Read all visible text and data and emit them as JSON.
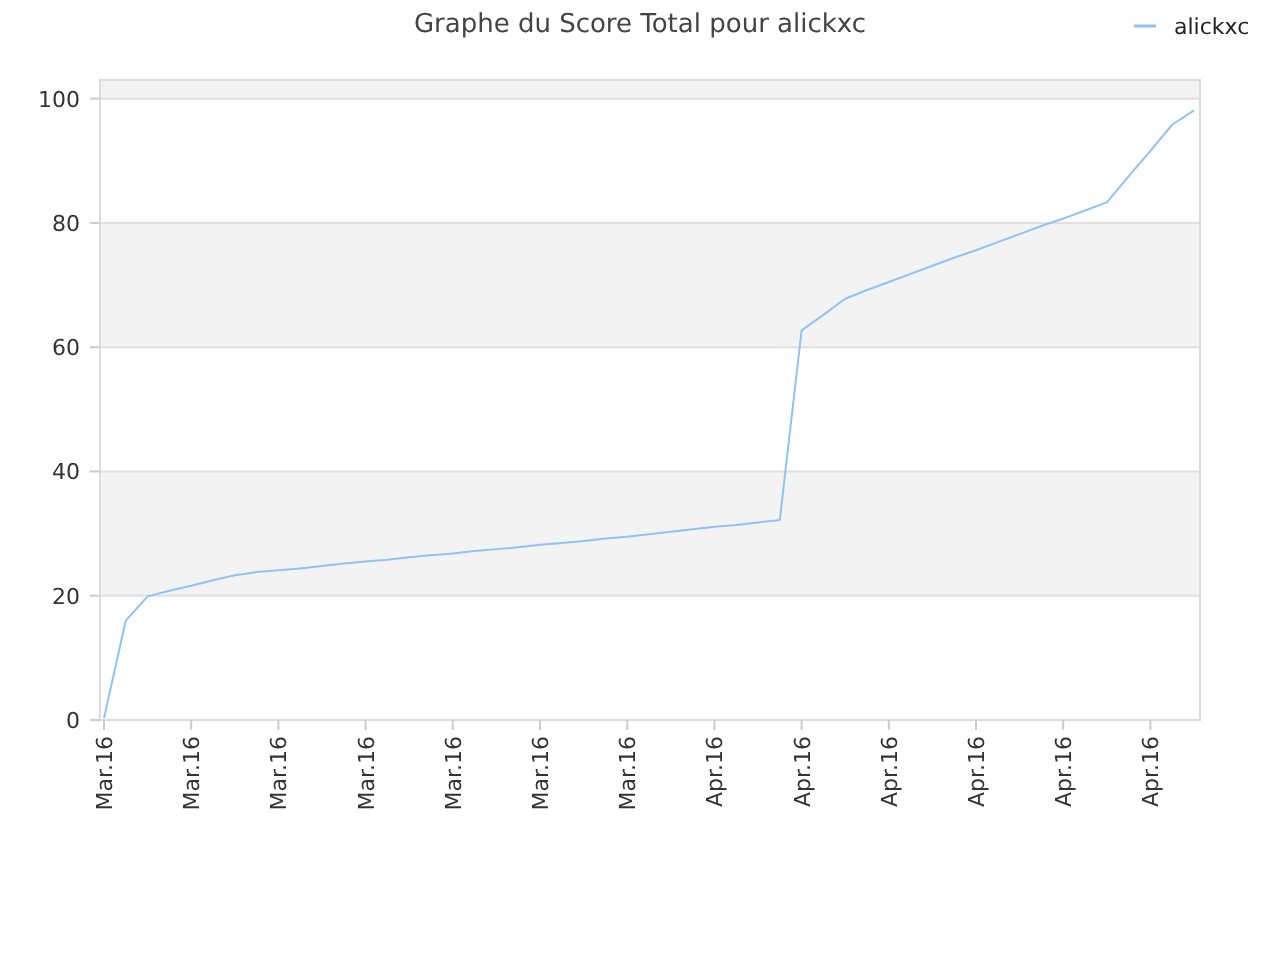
{
  "chart_data": {
    "type": "line",
    "title": "Graphe du Score Total pour alickxc",
    "categories": [
      "Mar.16",
      null,
      null,
      null,
      "Mar.16",
      null,
      null,
      null,
      "Mar.16",
      null,
      null,
      null,
      "Mar.16",
      null,
      null,
      null,
      "Mar.16",
      null,
      null,
      null,
      "Mar.16",
      null,
      null,
      null,
      "Mar.16",
      null,
      null,
      null,
      "Apr.16",
      null,
      null,
      null,
      "Apr.16",
      null,
      null,
      null,
      "Apr.16",
      null,
      null,
      null,
      "Apr.16",
      null,
      null,
      null,
      "Apr.16",
      null,
      null,
      null,
      "Apr.16",
      null,
      null
    ],
    "series": [
      {
        "name": "alickxc",
        "color": "#90c3f5",
        "values": [
          0.3,
          16,
          19.9,
          20.8,
          21.6,
          22.5,
          23.3,
          23.8,
          24.1,
          24.4,
          24.8,
          25.2,
          25.5,
          25.8,
          26.2,
          26.5,
          26.8,
          27.2,
          27.5,
          27.8,
          28.2,
          28.5,
          28.8,
          29.2,
          29.5,
          29.9,
          30.3,
          30.7,
          31.1,
          31.4,
          31.8,
          32.2,
          62.7,
          65.2,
          67.8,
          69.2,
          70.5,
          71.8,
          73.1,
          74.4,
          75.6,
          76.9,
          78.2,
          79.5,
          80.7,
          82,
          83.3,
          87.5,
          91.6,
          95.8,
          98.1
        ]
      }
    ],
    "ylim": [
      0,
      103
    ],
    "yticks": [
      0,
      20,
      40,
      60,
      80,
      100
    ],
    "grid": "y",
    "legend": "top right",
    "marker": "none",
    "line_style": "solid"
  }
}
